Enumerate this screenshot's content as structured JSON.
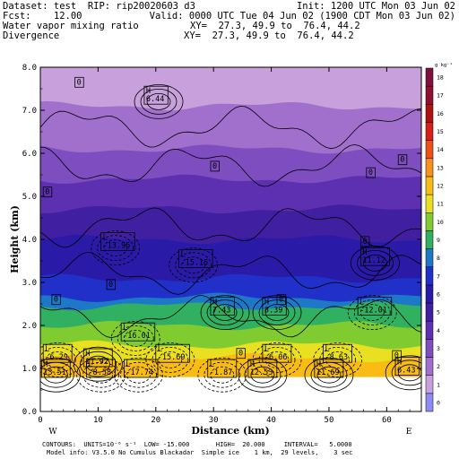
{
  "header": {
    "dataset_line": "Dataset: test  RIP: rip20020603 d3",
    "init_line": "Init: 1200 UTC Mon 03 Jun 02",
    "fcst_line": "Fcst:    12.00",
    "valid_line": "Valid: 0000 UTC Tue 04 Jun 02 (1900 CDT Mon 03 Jun 02)",
    "field1_name": "Water vapor mixing ratio",
    "field1_xy": "XY=  27.3, 49.9 to  76.4, 44.2",
    "field2_name": "Divergence",
    "field2_xy": "XY=  27.3, 49.9 to  76.4, 44.2"
  },
  "footer": {
    "contours_line": "CONTOURS:  UNITS=10⁻⁶ s⁻¹  LOW= -15.000       HIGH=  20.000     INTERVAL=   5.0000",
    "model_line": "Model info: V3.5.0 No Cumulus Blackadar  Simple ice    1 km,  29 levels,    3 sec"
  },
  "chart_data": {
    "type": "heatmap",
    "title": "",
    "xlabel": "Distance (km)",
    "ylabel": "Height (km)",
    "xlim": [
      0,
      66
    ],
    "ylim": [
      0,
      8
    ],
    "x_ticks": [
      0,
      10,
      20,
      30,
      40,
      50,
      60
    ],
    "y_ticks": [
      0.0,
      1.0,
      2.0,
      3.0,
      4.0,
      5.0,
      6.0,
      7.0,
      8.0
    ],
    "x_tick_labels": [
      "0",
      "10",
      "20",
      "30",
      "40",
      "50",
      "60"
    ],
    "y_tick_labels": [
      "0.0",
      "1.0",
      "2.0",
      "3.0",
      "4.0",
      "5.0",
      "6.0",
      "7.0",
      "8.0"
    ],
    "x_end_labels": {
      "left": "W",
      "right": "E"
    },
    "colorbar": {
      "unit_label": "g kg⁻¹",
      "levels": [
        0,
        1,
        2,
        3,
        4,
        5,
        6,
        7,
        8,
        9,
        10,
        11,
        12,
        13,
        14,
        15,
        16,
        17,
        18
      ],
      "colors": [
        "#8c8cf4",
        "#c8a0dc",
        "#a070cc",
        "#7e4ec0",
        "#5c30b0",
        "#4020a0",
        "#2a1aa8",
        "#2030c8",
        "#1e78c8",
        "#30b060",
        "#80cc30",
        "#e8e020",
        "#f8bc14",
        "#f89020",
        "#ee5018",
        "#d82018",
        "#b01010",
        "#901030",
        "#801040"
      ]
    },
    "moisture_layers_top_km": [
      {
        "level": 12,
        "top": 1.25
      },
      {
        "level": 11,
        "top": 1.55
      },
      {
        "level": 10,
        "top": 2.0
      },
      {
        "level": 9,
        "top": 2.45
      },
      {
        "level": 8,
        "top": 2.65
      },
      {
        "level": 7,
        "top": 3.1
      },
      {
        "level": 6,
        "top": 4.0
      },
      {
        "level": 5,
        "top": 4.7
      },
      {
        "level": 4,
        "top": 5.4
      },
      {
        "level": 3,
        "top": 6.1
      },
      {
        "level": 2,
        "top": 7.1
      },
      {
        "level": 1,
        "top": 8.0
      }
    ],
    "ground_height_km": 0.8,
    "contour_labels": [
      {
        "x": 6.0,
        "y": 7.65,
        "text": "0"
      },
      {
        "x": 18.0,
        "y": 7.35,
        "text": "H\n6.44"
      },
      {
        "x": 29.5,
        "y": 5.7,
        "text": "0"
      },
      {
        "x": 62.0,
        "y": 5.85,
        "text": "0"
      },
      {
        "x": 56.5,
        "y": 5.55,
        "text": "0"
      },
      {
        "x": 0.5,
        "y": 5.1,
        "text": "0"
      },
      {
        "x": 10.5,
        "y": 3.95,
        "text": "L\n-13.95"
      },
      {
        "x": 24.0,
        "y": 3.55,
        "text": "L\n-15.15"
      },
      {
        "x": 55.5,
        "y": 3.95,
        "text": "0"
      },
      {
        "x": 55.5,
        "y": 3.6,
        "text": "H\n11.12"
      },
      {
        "x": 11.5,
        "y": 2.95,
        "text": "0"
      },
      {
        "x": 2.0,
        "y": 2.6,
        "text": "0"
      },
      {
        "x": 29.5,
        "y": 2.45,
        "text": "H\n7.43"
      },
      {
        "x": 38.5,
        "y": 2.45,
        "text": "H\n8.39"
      },
      {
        "x": 55.0,
        "y": 2.45,
        "text": "L\n-12.01"
      },
      {
        "x": 41.0,
        "y": 2.6,
        "text": "0"
      },
      {
        "x": 14.0,
        "y": 1.85,
        "text": "L\n-16.01"
      },
      {
        "x": 0.5,
        "y": 1.35,
        "text": "L\n-6.29"
      },
      {
        "x": 7.5,
        "y": 1.25,
        "text": "H\n11.92"
      },
      {
        "x": 20.0,
        "y": 1.35,
        "text": "L\n-15.69"
      },
      {
        "x": 34.0,
        "y": 1.35,
        "text": "0"
      },
      {
        "x": 38.5,
        "y": 1.35,
        "text": "L\n-6.06"
      },
      {
        "x": 49.0,
        "y": 1.35,
        "text": "L\n-8.63"
      },
      {
        "x": 61.0,
        "y": 1.3,
        "text": "0"
      },
      {
        "x": 61.5,
        "y": 1.05,
        "text": "H\n6.43"
      },
      {
        "x": 0.2,
        "y": 1.0,
        "text": "H\n13.51"
      },
      {
        "x": 8.0,
        "y": 1.0,
        "text": "L\n-8.58"
      },
      {
        "x": 14.5,
        "y": 1.0,
        "text": "L\n-17.74"
      },
      {
        "x": 29.0,
        "y": 1.0,
        "text": "L\n-1.87"
      },
      {
        "x": 36.0,
        "y": 1.0,
        "text": "H\n12.53"
      },
      {
        "x": 47.5,
        "y": 1.0,
        "text": "H\n11.69"
      }
    ]
  }
}
